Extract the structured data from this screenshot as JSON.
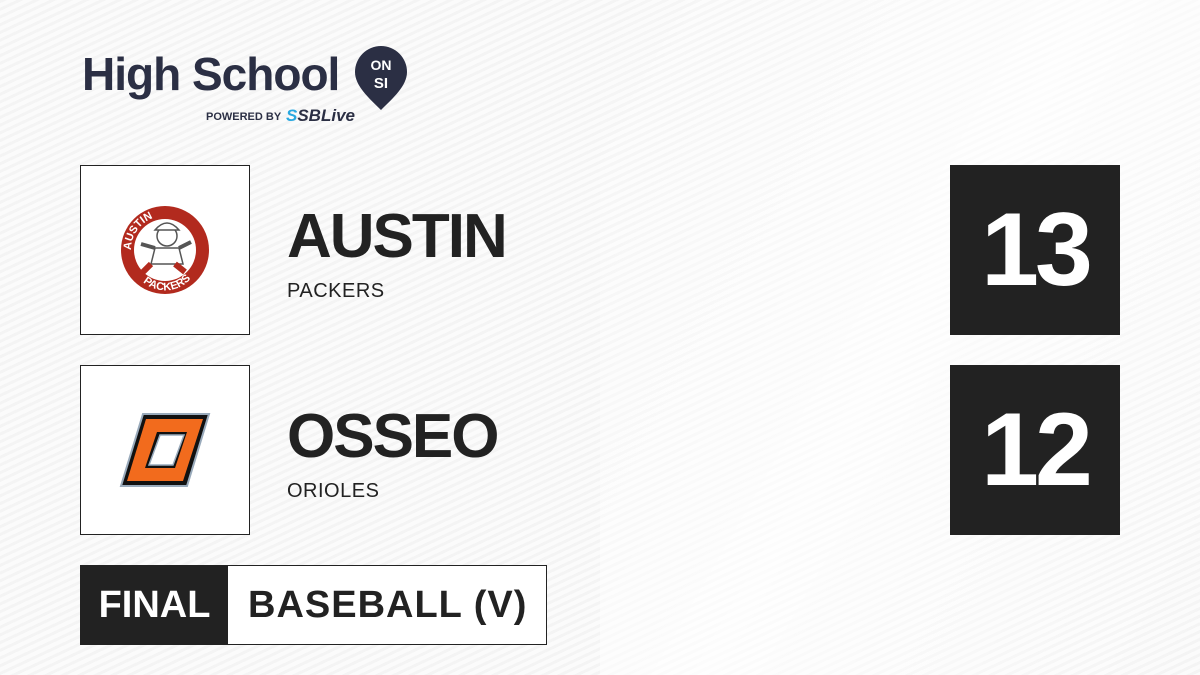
{
  "brand": {
    "title": "High School",
    "badge_top": "ON",
    "badge_bottom": "SI",
    "powered_by": "POWERED BY",
    "partner_prefix": "S",
    "partner": "SBLive"
  },
  "teams": [
    {
      "name": "AUSTIN",
      "mascot": "PACKERS",
      "score": "13",
      "logo": "austin-packers-logo",
      "logo_color": "#b22a1e",
      "logo_text_top": "AUSTIN",
      "logo_text_bottom": "PACKERS"
    },
    {
      "name": "OSSEO",
      "mascot": "ORIOLES",
      "score": "12",
      "logo": "osseo-o-logo",
      "logo_color": "#f26b1d"
    }
  ],
  "game": {
    "status": "FINAL",
    "sport": "BASEBALL (V)"
  }
}
